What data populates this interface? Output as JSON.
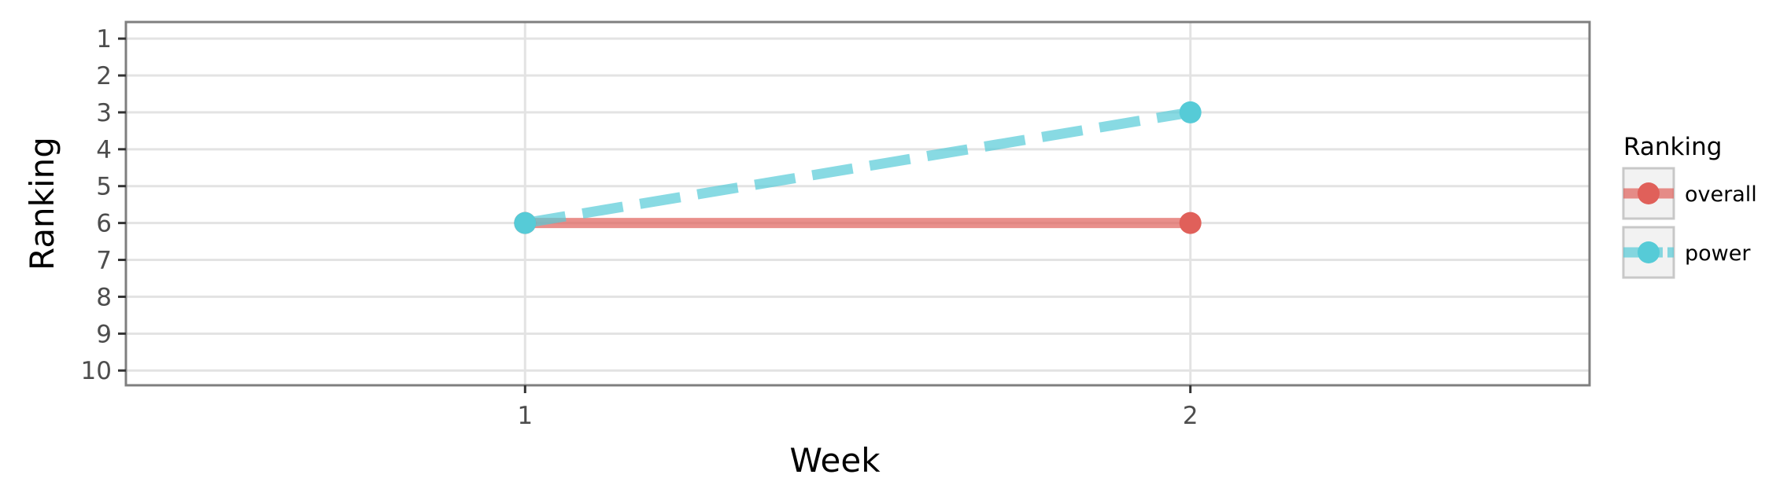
{
  "chart_data": {
    "type": "line",
    "xlabel": "Week",
    "ylabel": "Ranking",
    "x_ticks": [
      "1",
      "2"
    ],
    "y_ticks": [
      "1",
      "2",
      "3",
      "4",
      "5",
      "6",
      "7",
      "8",
      "9",
      "10"
    ],
    "xlim": [
      0.4,
      2.6
    ],
    "ylim": [
      10.4,
      0.55
    ],
    "y_reversed": true,
    "grid": true,
    "legend_position": "right",
    "legend_title": "Ranking",
    "series": [
      {
        "name": "overall",
        "x": [
          1,
          2
        ],
        "y": [
          6,
          6
        ],
        "color": "#E0605A",
        "linestyle": "solid"
      },
      {
        "name": "power",
        "x": [
          1,
          2
        ],
        "y": [
          6,
          3
        ],
        "color": "#56CBD7",
        "linestyle": "dashed"
      }
    ]
  }
}
